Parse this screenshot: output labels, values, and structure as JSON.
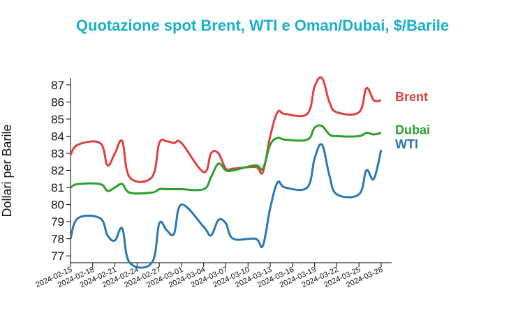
{
  "chart_data": {
    "type": "line",
    "title": "Quotazione spot Brent, WTI e Oman/Dubai, $/Barile",
    "xlabel": "",
    "ylabel": "Dollari per Barile",
    "ylim": [
      76.6,
      87.4
    ],
    "yticks": [
      77,
      78,
      79,
      80,
      81,
      82,
      83,
      84,
      85,
      86,
      87
    ],
    "xticks": [
      "2024-02-15",
      "2024-02-18",
      "2024-02-21",
      "2024-02-24",
      "2024-02-27",
      "2024-03-01",
      "2024-03-04",
      "2024-03-07",
      "2024-03-10",
      "2024-03-13",
      "2024-03-16",
      "2024-03-19",
      "2024-03-22",
      "2024-03-25",
      "2024-03-28"
    ],
    "x": [
      "2024-02-15",
      "2024-02-16",
      "2024-02-19",
      "2024-02-20",
      "2024-02-21",
      "2024-02-22",
      "2024-02-23",
      "2024-02-26",
      "2024-02-27",
      "2024-02-28",
      "2024-02-29",
      "2024-03-01",
      "2024-03-04",
      "2024-03-05",
      "2024-03-06",
      "2024-03-07",
      "2024-03-08",
      "2024-03-11",
      "2024-03-12",
      "2024-03-13",
      "2024-03-14",
      "2024-03-15",
      "2024-03-18",
      "2024-03-19",
      "2024-03-20",
      "2024-03-21",
      "2024-03-22",
      "2024-03-25",
      "2024-03-26",
      "2024-03-27",
      "2024-03-28"
    ],
    "series": [
      {
        "name": "Brent",
        "color": "#e04040",
        "values": [
          82.9,
          83.5,
          83.6,
          82.3,
          83.0,
          83.7,
          81.6,
          81.6,
          83.6,
          83.7,
          83.6,
          83.6,
          81.9,
          83.0,
          83.0,
          82.1,
          82.1,
          82.2,
          81.9,
          84.0,
          85.4,
          85.3,
          85.3,
          86.9,
          87.4,
          86.0,
          85.4,
          85.4,
          86.8,
          86.1,
          86.1
        ]
      },
      {
        "name": "Dubai",
        "color": "#2ca02c",
        "values": [
          81.0,
          81.2,
          81.2,
          80.8,
          81.0,
          81.2,
          80.7,
          80.7,
          80.9,
          80.9,
          80.9,
          80.9,
          80.9,
          81.6,
          82.4,
          82.0,
          82.0,
          82.3,
          82.1,
          83.5,
          83.9,
          83.8,
          83.8,
          84.5,
          84.6,
          84.1,
          84.0,
          84.0,
          84.2,
          84.1,
          84.2
        ]
      },
      {
        "name": "WTI",
        "color": "#2a78b5",
        "values": [
          78.0,
          79.2,
          79.2,
          78.2,
          77.9,
          78.6,
          76.6,
          76.6,
          78.9,
          78.5,
          78.3,
          80.0,
          78.7,
          78.2,
          79.1,
          78.9,
          78.0,
          78.0,
          77.6,
          79.8,
          81.3,
          81.0,
          81.0,
          82.7,
          83.5,
          81.7,
          80.6,
          80.6,
          82.0,
          81.5,
          83.2
        ]
      }
    ],
    "grid": false,
    "legend": "right, labels at line ends"
  }
}
